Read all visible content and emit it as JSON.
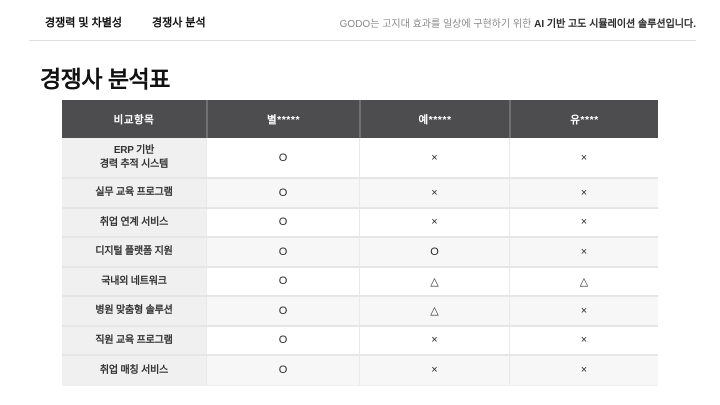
{
  "topbar": {
    "tabs": [
      {
        "label": "경쟁력 및 차별성"
      },
      {
        "label": "경쟁사 분석"
      }
    ],
    "description": {
      "normal": "GODO는 고지대 효과를 일상에 구현하기 위한 ",
      "bold": "AI 기반 고도 시뮬레이션 솔루션입니다."
    }
  },
  "page": {
    "title": "경쟁사 분석표"
  },
  "table": {
    "columns": [
      "비교항목",
      "별*****",
      "예*****",
      "유****"
    ],
    "rows": [
      {
        "label": "ERP 기반\n경력 추적 시스템",
        "values": [
          "O",
          "×",
          "×"
        ]
      },
      {
        "label": "실무 교육 프로그램",
        "values": [
          "O",
          "×",
          "×"
        ]
      },
      {
        "label": "취업 연계 서비스",
        "values": [
          "O",
          "×",
          "×"
        ]
      },
      {
        "label": "디지털 플랫폼 지원",
        "values": [
          "O",
          "O",
          "×"
        ]
      },
      {
        "label": "국내외 네트워크",
        "values": [
          "O",
          "△",
          "△"
        ]
      },
      {
        "label": "병원 맞춤형 솔루션",
        "values": [
          "O",
          "△",
          "×"
        ]
      },
      {
        "label": "직원 교육 프로그램",
        "values": [
          "O",
          "×",
          "×"
        ]
      },
      {
        "label": "취업 매칭 서비스",
        "values": [
          "O",
          "×",
          "×"
        ]
      }
    ],
    "colors": {
      "header_bg": "#4d4d4f",
      "header_text": "#ffffff",
      "label_col_bg": "#f0f0f0",
      "row_alt_bg": "#f7f7f7",
      "border": "#e6e6e6"
    }
  }
}
